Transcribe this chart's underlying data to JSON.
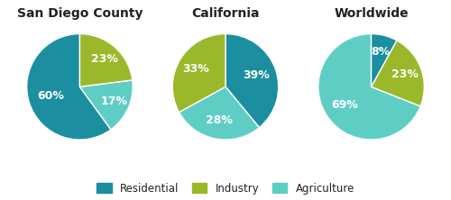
{
  "charts": [
    {
      "title": "San Diego County",
      "values": [
        60,
        17,
        23
      ],
      "labels": [
        "60%",
        "17%",
        "23%"
      ],
      "colors": [
        "#1b8fa0",
        "#5ecec5",
        "#9ab82a"
      ],
      "startangle": 90,
      "counterclock": true,
      "label_r": [
        0.58,
        0.7,
        0.7
      ]
    },
    {
      "title": "California",
      "values": [
        39,
        28,
        33
      ],
      "labels": [
        "39%",
        "28%",
        "33%"
      ],
      "colors": [
        "#1b8fa0",
        "#5ecec5",
        "#9ab82a"
      ],
      "startangle": 90,
      "counterclock": false,
      "label_r": [
        0.62,
        0.65,
        0.65
      ]
    },
    {
      "title": "Worldwide",
      "values": [
        69,
        23,
        8
      ],
      "labels": [
        "69%",
        "23%",
        "8%"
      ],
      "colors": [
        "#5ecec5",
        "#9ab82a",
        "#1b8fa0"
      ],
      "startangle": 90,
      "counterclock": true,
      "label_r": [
        0.6,
        0.68,
        0.68
      ]
    }
  ],
  "legend": [
    {
      "label": "Residential",
      "color": "#1b8fa0"
    },
    {
      "label": "Industry",
      "color": "#9ab82a"
    },
    {
      "label": "Agriculture",
      "color": "#5ecec5"
    }
  ],
  "bg_color": "#ffffff",
  "text_color": "#ffffff",
  "title_color": "#222222",
  "title_fontsize": 10,
  "pct_fontsize": 9
}
